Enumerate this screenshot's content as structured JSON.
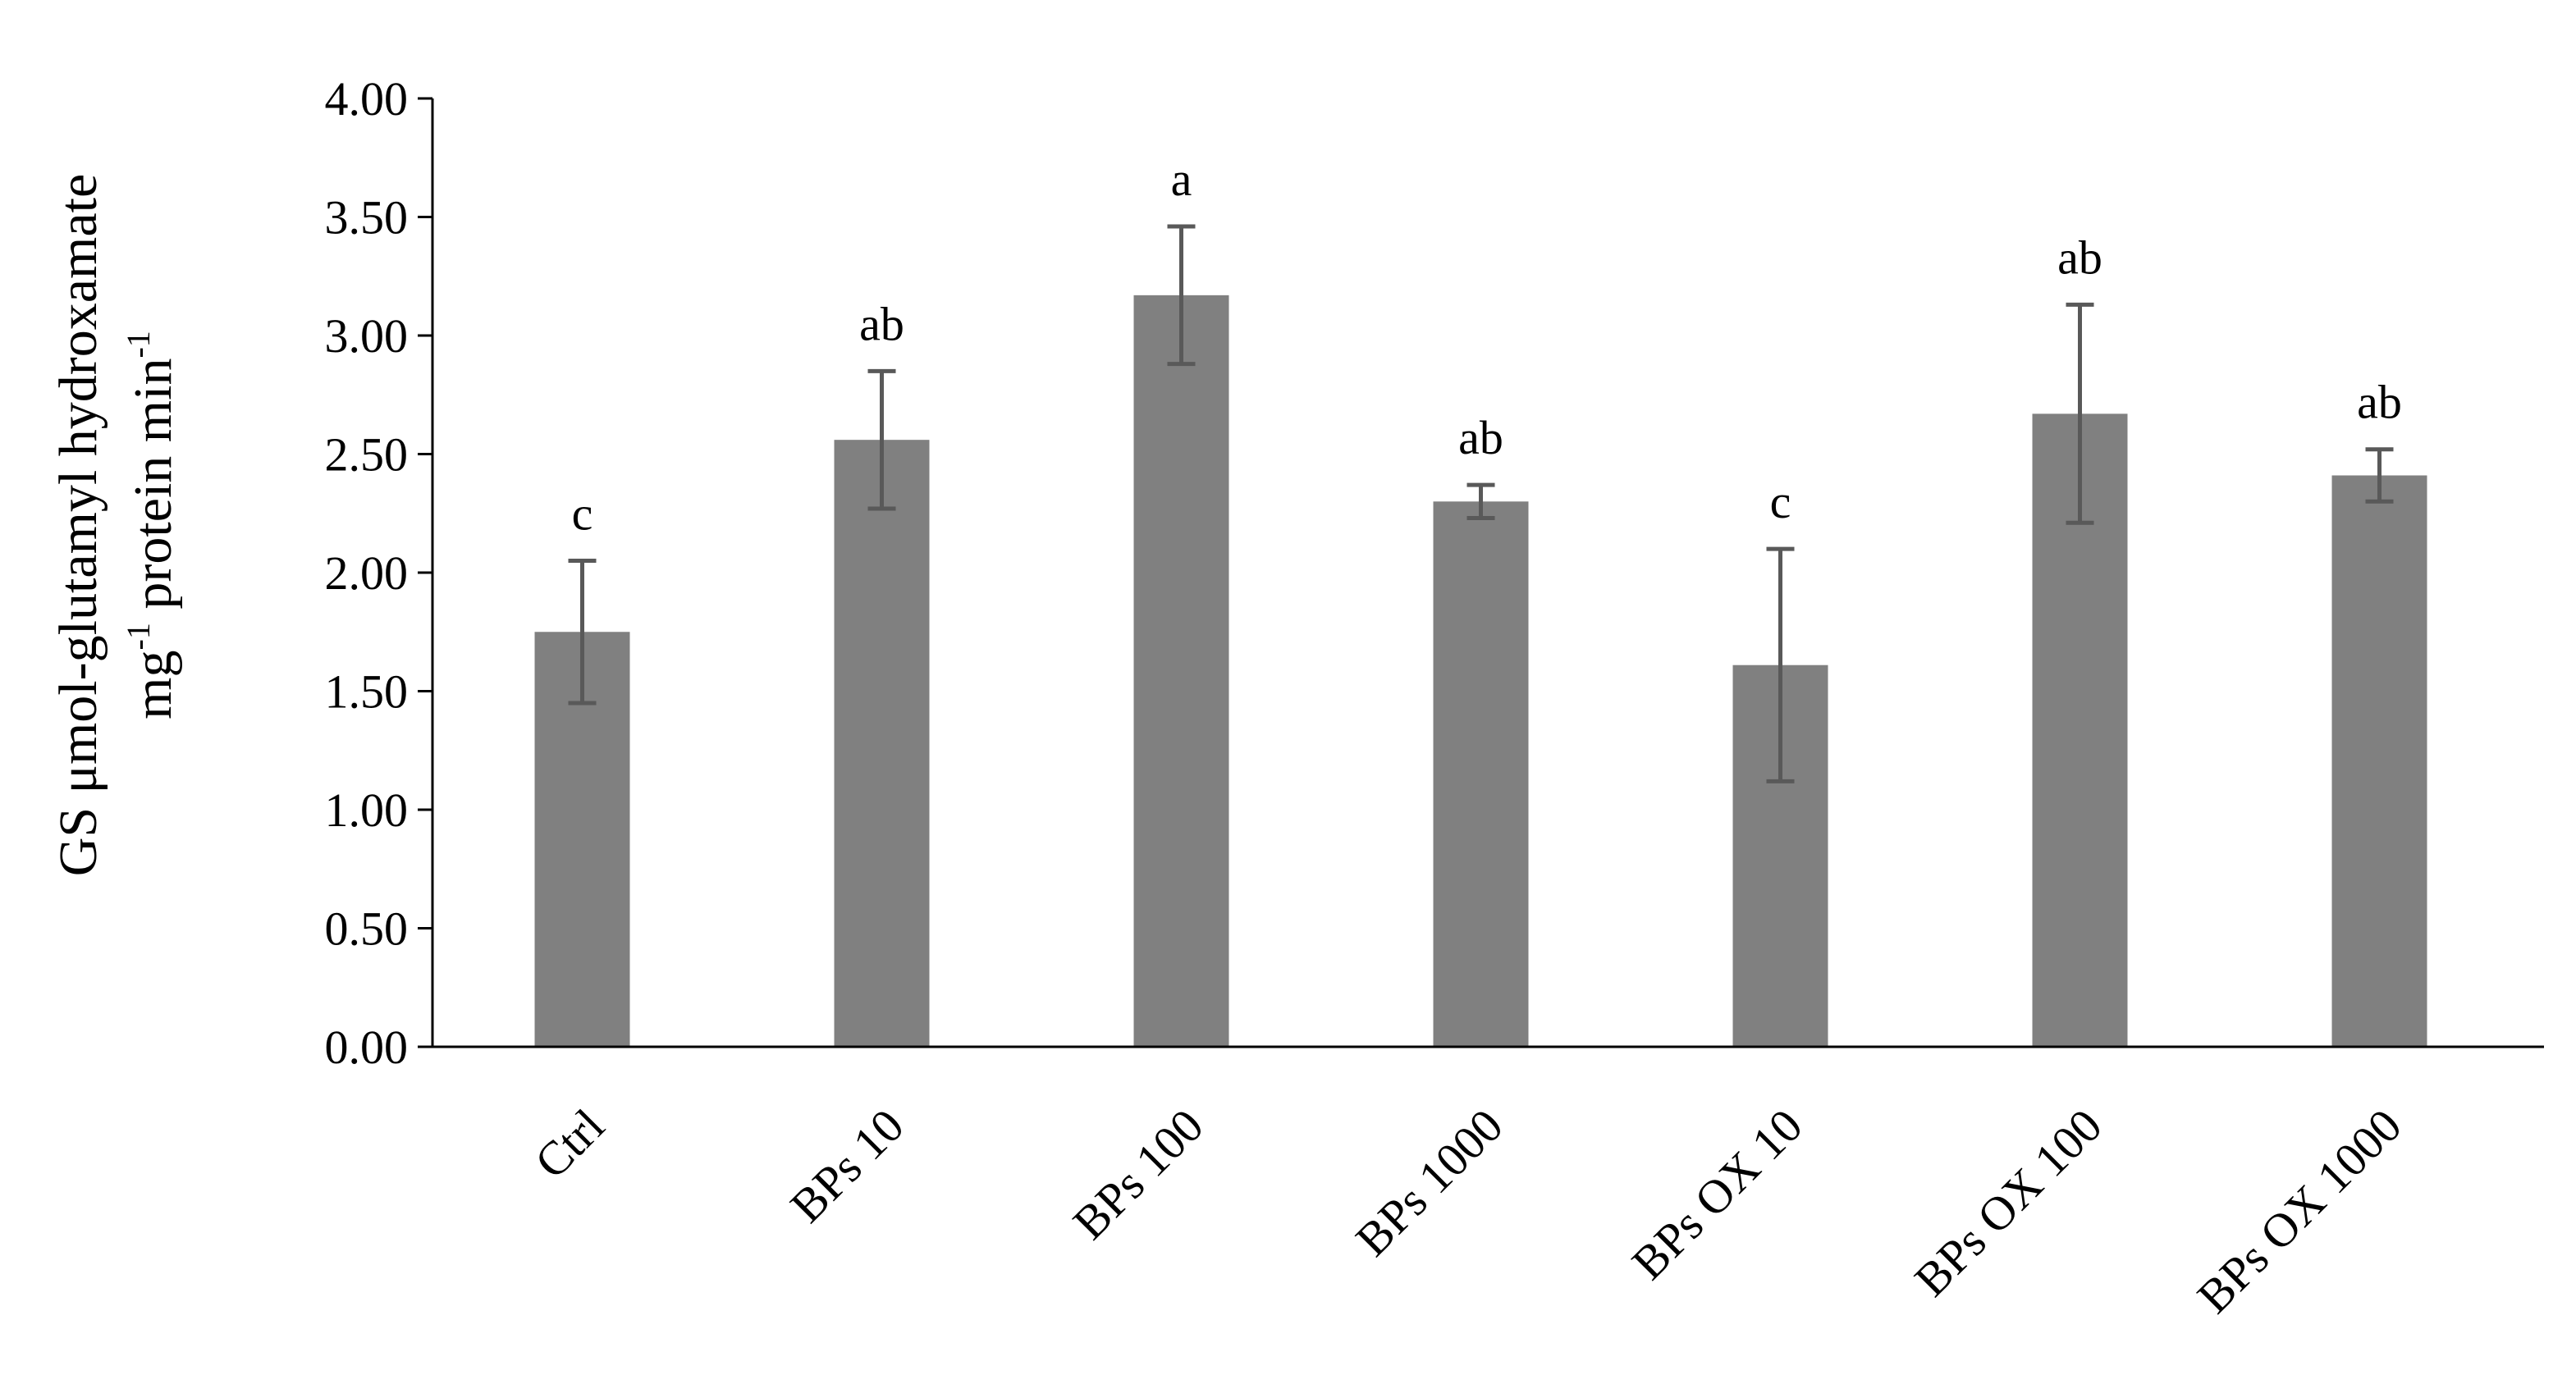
{
  "chart_data": {
    "type": "bar",
    "categories": [
      "Ctrl",
      "BPs 10",
      "BPs 100",
      "BPs 1000",
      "BPs OX 10",
      "BPs OX 100",
      "BPs OX 1000"
    ],
    "series": [
      {
        "values": [
          1.75,
          2.56,
          3.17,
          2.3,
          1.61,
          2.67,
          2.41
        ],
        "errors": [
          0.3,
          0.29,
          0.29,
          0.07,
          0.49,
          0.46,
          0.11
        ],
        "significance": [
          "c",
          "ab",
          "a",
          "ab",
          "c",
          "ab",
          "ab"
        ]
      }
    ],
    "ylabel_line1": "GS μmol-glutamyl hydroxamate",
    "ylabel_line2": {
      "part1": "mg",
      "sup1": "-1",
      "part2": " protein min",
      "sup2": "-1"
    },
    "ylim": [
      0,
      4
    ],
    "ytick_step": 0.5,
    "ytick_labels": [
      "0.00",
      "0.50",
      "1.00",
      "1.50",
      "2.00",
      "2.50",
      "3.00",
      "3.50",
      "4.00"
    ],
    "grid": false,
    "legend": "none",
    "colors": {
      "bar": "#808080",
      "error_bar": "#595959",
      "axis": "#000000"
    }
  }
}
